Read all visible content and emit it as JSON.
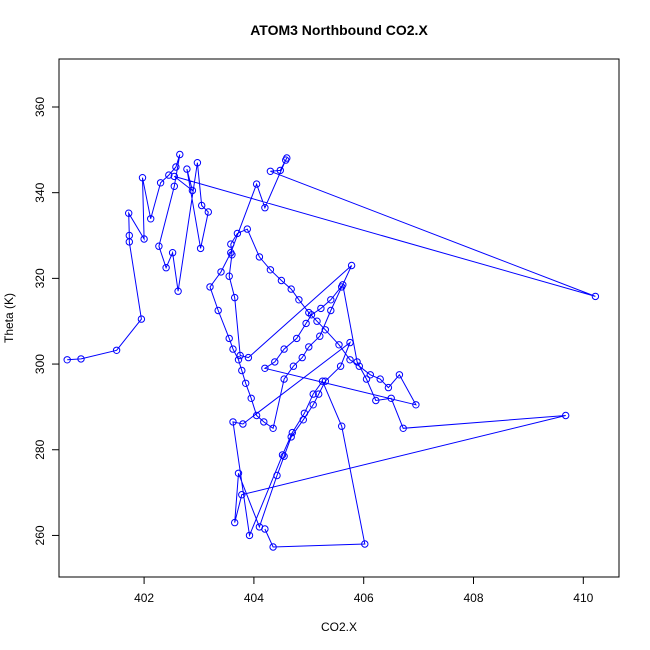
{
  "chart_data": {
    "type": "scatter",
    "title": "ATOM3 Northbound CO2.X",
    "xlabel": "CO2.X",
    "ylabel": "Theta (K)",
    "xlim": [
      400.45,
      410.65
    ],
    "ylim": [
      250.3,
      371.2
    ],
    "xticks": [
      402,
      404,
      406,
      408,
      410
    ],
    "yticks": [
      260,
      280,
      300,
      320,
      340,
      360
    ],
    "grid": false,
    "legend": "none",
    "colors": {
      "series": "#0000ff",
      "axes": "#000000"
    },
    "series": [
      {
        "x": [
          400.6,
          400.85,
          401.5,
          401.95,
          401.73,
          401.73,
          401.72,
          402.0,
          401.97,
          402.12,
          402.3,
          402.45,
          402.58,
          402.65,
          402.55,
          402.27,
          402.4,
          402.52,
          402.62,
          402.97,
          403.05,
          403.17,
          403.03,
          402.78,
          402.88,
          402.55,
          410.22,
          404.3,
          404.48,
          404.6,
          404.58,
          404.2,
          404.05,
          403.58,
          403.4,
          403.2,
          403.35,
          403.55,
          403.62,
          403.72,
          403.78,
          403.85,
          403.95,
          404.05,
          404.18,
          404.35,
          404.55,
          404.72,
          404.88,
          405.0,
          405.2,
          405.4,
          405.6,
          405.78,
          403.9,
          403.75,
          403.65,
          403.55,
          403.6,
          403.58,
          403.7,
          403.88,
          404.1,
          404.3,
          404.5,
          404.68,
          404.82,
          405.0,
          405.15,
          405.3,
          405.55,
          405.75,
          405.92,
          406.12,
          406.3,
          406.45,
          406.65,
          406.95,
          404.2,
          404.38,
          404.55,
          404.78,
          404.95,
          405.05,
          405.22,
          405.4,
          405.62,
          405.88,
          406.05,
          406.22,
          406.5,
          406.72,
          409.68,
          403.78,
          403.65,
          403.72,
          404.1,
          404.42,
          404.55,
          404.68,
          404.9,
          405.08,
          405.18,
          405.3,
          405.58,
          405.75,
          403.8,
          403.62,
          403.92,
          404.52,
          404.7,
          404.92,
          405.08,
          405.25,
          405.6,
          406.02,
          404.35,
          404.2
        ],
        "y": [
          301.0,
          301.2,
          303.2,
          310.5,
          328.5,
          330.0,
          335.2,
          329.2,
          343.5,
          333.9,
          342.3,
          344.1,
          346.0,
          348.9,
          341.5,
          327.5,
          322.5,
          326.0,
          317.0,
          347.0,
          337.0,
          335.5,
          327.0,
          345.5,
          340.5,
          343.8,
          315.8,
          345.0,
          345.2,
          348.1,
          347.6,
          336.5,
          342.0,
          326.0,
          321.5,
          318.0,
          312.5,
          306.0,
          303.5,
          301.0,
          298.5,
          295.5,
          292.0,
          288.0,
          286.5,
          285.0,
          296.5,
          299.5,
          301.5,
          304.0,
          306.5,
          312.5,
          318.0,
          323.0,
          301.5,
          302.0,
          315.5,
          320.5,
          325.5,
          328.0,
          330.5,
          331.5,
          325.0,
          322.0,
          319.5,
          317.5,
          315.0,
          312.0,
          310.0,
          308.0,
          304.5,
          301.0,
          299.5,
          297.5,
          296.5,
          294.5,
          297.5,
          290.5,
          299.0,
          300.5,
          303.5,
          306.0,
          309.5,
          311.5,
          313.0,
          315.0,
          318.5,
          300.5,
          296.5,
          291.5,
          292.0,
          285.0,
          288.0,
          269.5,
          263.0,
          274.5,
          262.0,
          274.0,
          278.5,
          283.0,
          287.0,
          290.5,
          293.0,
          296.0,
          299.5,
          305.0,
          286.0,
          286.5,
          260.0,
          278.8,
          284.0,
          288.5,
          293.0,
          296.0,
          285.5,
          258.0,
          257.3,
          261.5
        ]
      }
    ]
  }
}
